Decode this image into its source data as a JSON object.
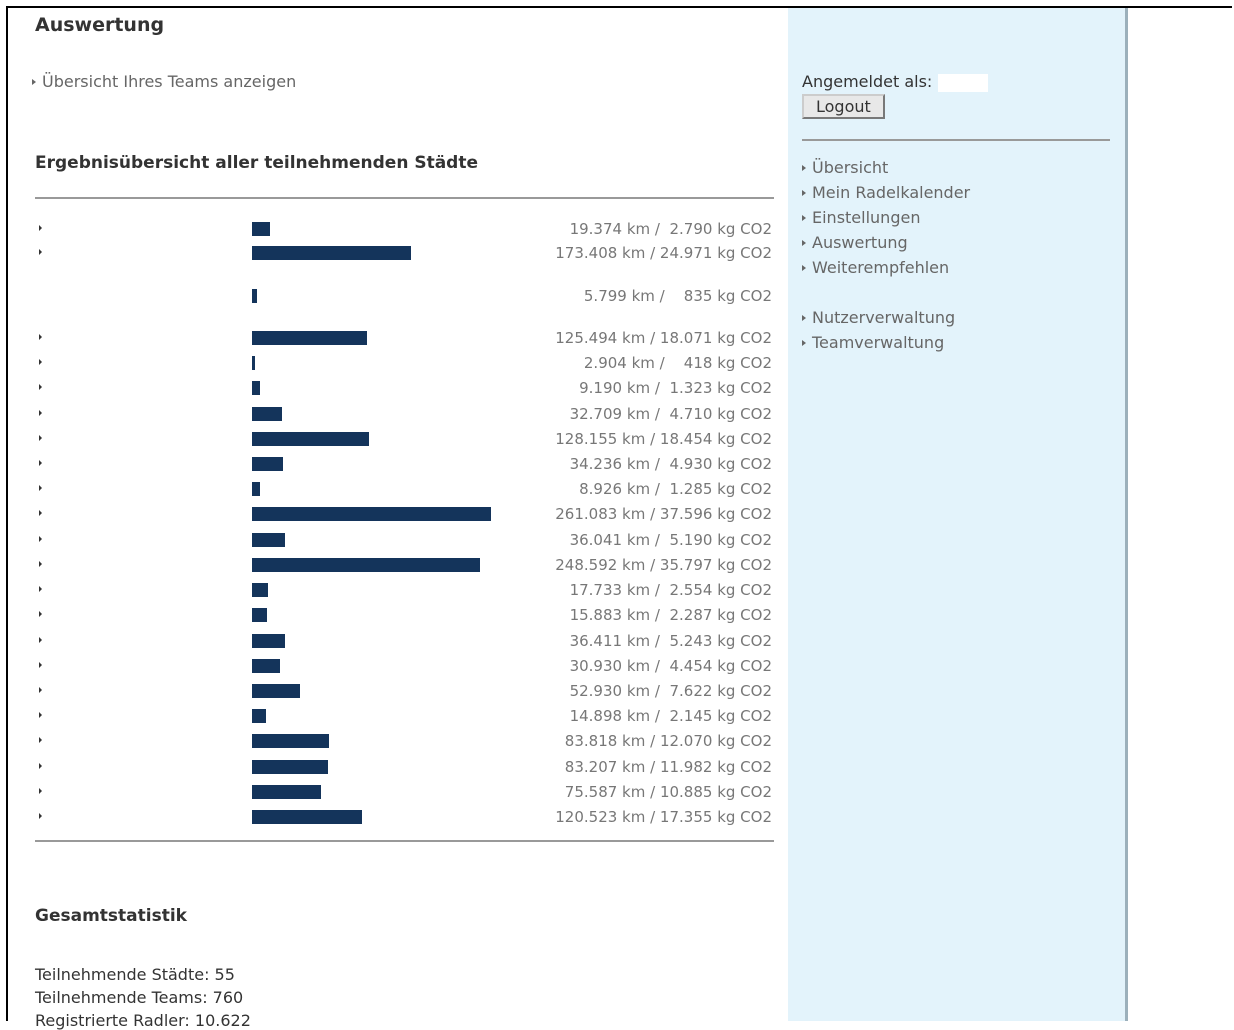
{
  "main": {
    "title": "Auswertung",
    "team_link": "Übersicht Ihres Teams anzeigen",
    "results_title": "Ergebnisübersicht aller teilnehmenden Städte"
  },
  "chart_data": {
    "type": "bar",
    "orientation": "horizontal",
    "unit": "km",
    "series": [
      {
        "values": [
          19374,
          173408,
          5799,
          125494,
          2904,
          9190,
          32709,
          128155,
          34236,
          8926,
          261083,
          36041,
          248592,
          17733,
          15883,
          36411,
          30930,
          52930,
          14898,
          83818,
          83207,
          75587,
          120523
        ]
      }
    ],
    "stat_labels": [
      "19.374 km /  2.790 kg CO2",
      "173.408 km / 24.971 kg CO2",
      "5.799 km /    835 kg CO2",
      "125.494 km / 18.071 kg CO2",
      "2.904 km /    418 kg CO2",
      "9.190 km /  1.323 kg CO2",
      "32.709 km /  4.710 kg CO2",
      "128.155 km / 18.454 kg CO2",
      "34.236 km /  4.930 kg CO2",
      "8.926 km /  1.285 kg CO2",
      "261.083 km / 37.596 kg CO2",
      "36.041 km /  5.190 kg CO2",
      "248.592 km / 35.797 kg CO2",
      "17.733 km /  2.554 kg CO2",
      "15.883 km /  2.287 kg CO2",
      "36.411 km /  5.243 kg CO2",
      "30.930 km /  4.454 kg CO2",
      "52.930 km /  7.622 kg CO2",
      "14.898 km /  2.145 kg CO2",
      "83.818 km / 12.070 kg CO2",
      "83.207 km / 11.982 kg CO2",
      "75.587 km / 10.885 kg CO2",
      "120.523 km / 17.355 kg CO2"
    ],
    "row_has_link": [
      true,
      true,
      false,
      true,
      true,
      true,
      true,
      true,
      true,
      true,
      true,
      true,
      true,
      true,
      true,
      true,
      true,
      true,
      true,
      true,
      true,
      true,
      true
    ],
    "bar_color": "#14345b"
  },
  "totals": {
    "title": "Gesamtstatistik",
    "lines": [
      "Teilnehmende Städte: 55",
      "Teilnehmende Teams: 760",
      "Registrierte Radler: 10.622"
    ]
  },
  "sidebar": {
    "logged_in_label": "Angemeldet als:",
    "logout_label": "Logout",
    "nav": [
      {
        "label": "Übersicht"
      },
      {
        "label": "Mein Radelkalender"
      },
      {
        "label": "Einstellungen"
      },
      {
        "label": "Auswertung"
      },
      {
        "label": "Weiterempfehlen"
      },
      {
        "label": "Nutzerverwaltung"
      },
      {
        "label": "Teamverwaltung"
      }
    ]
  },
  "colors": {
    "sidebar_bg": "#e3f3fb",
    "bar": "#14345b"
  }
}
